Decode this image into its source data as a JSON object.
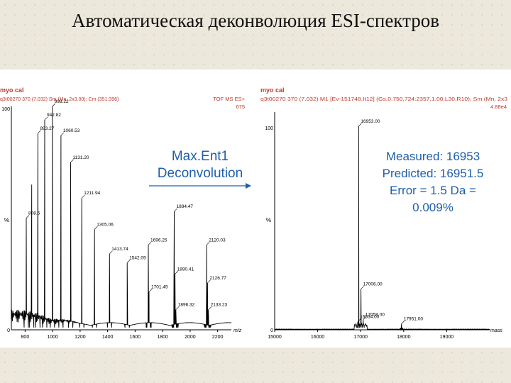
{
  "slide": {
    "title": "Автоматическая деконволюция ESI-спектров"
  },
  "center": {
    "method_line1": "Max.Ent1",
    "method_line2": "Deconvolution",
    "result_line1": "Measured:  16953",
    "result_line2": "Predicted:  16951.5",
    "result_line3": "Error = 1.5 Da =",
    "result_line4": "0.009%"
  },
  "left_header": {
    "sample": "myo cal",
    "scan": "q3t00270  370 (7.032) Sm (Mn, 2x3.00); Cm (351:396)",
    "instrument": "TOF MS ES+",
    "intensity": "675"
  },
  "right_header": {
    "sample": "myo cal",
    "scan": "q3t00270  370 (7.032) M1 [Ev-151748,It12] (Gs,0.750,724:2357,1.00,L30,R10); Sm (Mn, 2x3",
    "intensity": "4.88e4"
  },
  "colors": {
    "header_red": "#c0392b",
    "text_blue": "#1f5fa8",
    "trace": "#000000"
  },
  "chart_data": [
    {
      "type": "line",
      "subtype": "mass-spectrum",
      "xlabel": "m/z",
      "ylabel": "%",
      "xlim": [
        700,
        2300
      ],
      "ylim": [
        0,
        100
      ],
      "xticks": [
        800,
        1000,
        1200,
        1400,
        1600,
        1800,
        2000,
        2200
      ],
      "yticks": [
        0,
        100
      ],
      "peaks": [
        {
          "x": 808.5,
          "y": 50,
          "label": "808.5"
        },
        {
          "x": 848.2,
          "y": 65,
          "label": ""
        },
        {
          "x": 893.27,
          "y": 88,
          "label": "893.27"
        },
        {
          "x": 942.82,
          "y": 94,
          "label": "942.82"
        },
        {
          "x": 998.22,
          "y": 100,
          "label": "998.22"
        },
        {
          "x": 1060.53,
          "y": 87,
          "label": "1060.53"
        },
        {
          "x": 1131.2,
          "y": 75,
          "label": "1131.20"
        },
        {
          "x": 1211.94,
          "y": 59,
          "label": "1211.94"
        },
        {
          "x": 1305.06,
          "y": 45,
          "label": "1305.06"
        },
        {
          "x": 1413.74,
          "y": 34,
          "label": "1413.74"
        },
        {
          "x": 1542.09,
          "y": 30,
          "label": "1542.09"
        },
        {
          "x": 1696.25,
          "y": 38,
          "label": "1696.25"
        },
        {
          "x": 1701.49,
          "y": 17,
          "label": "1701.49"
        },
        {
          "x": 1884.47,
          "y": 53,
          "label": "1884.47"
        },
        {
          "x": 1890.41,
          "y": 25,
          "label": "1890.41"
        },
        {
          "x": 1896.32,
          "y": 9,
          "label": "1896.32"
        },
        {
          "x": 2120.03,
          "y": 38,
          "label": "2120.03"
        },
        {
          "x": 2126.77,
          "y": 21,
          "label": "2126.77"
        },
        {
          "x": 2133.23,
          "y": 9,
          "label": "2133.23"
        }
      ]
    },
    {
      "type": "line",
      "subtype": "deconvoluted-mass-spectrum",
      "xlabel": "mass",
      "ylabel": "%",
      "xlim": [
        15000,
        20000
      ],
      "ylim": [
        0,
        100
      ],
      "xticks": [
        15000,
        16000,
        17000,
        18000,
        19000
      ],
      "yticks": [
        0,
        100
      ],
      "peaks": [
        {
          "x": 16934.0,
          "y": 4,
          "label": "16934.00"
        },
        {
          "x": 16953.0,
          "y": 100,
          "label": "16953.00"
        },
        {
          "x": 17006.0,
          "y": 20,
          "label": "17006.00"
        },
        {
          "x": 17058.0,
          "y": 5,
          "label": "17058.00"
        },
        {
          "x": 17951.0,
          "y": 3,
          "label": "17951.00"
        }
      ]
    }
  ]
}
